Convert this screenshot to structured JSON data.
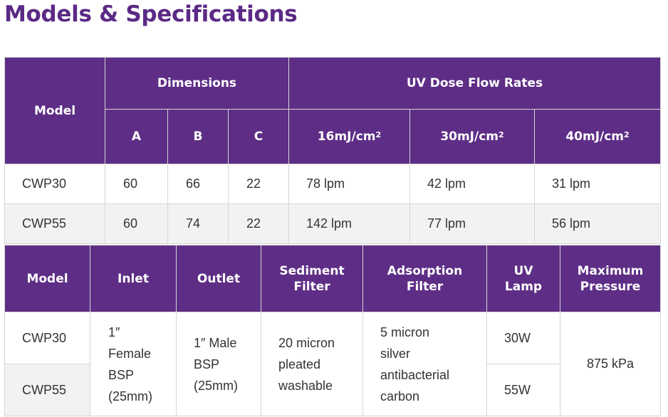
{
  "title": "Models & Specifications",
  "table1": {
    "model_header": "Model",
    "dimensions_header": "Dimensions",
    "flow_header": "UV Dose Flow Rates",
    "dim_cols": [
      "A",
      "B",
      "C"
    ],
    "dose_cols": [
      {
        "base": "16mJ/cm",
        "sup": "2"
      },
      {
        "base": "30mJ/cm",
        "sup": "2"
      },
      {
        "base": "40mJ/cm",
        "sup": "2"
      }
    ],
    "rows": [
      {
        "model": "CWP30",
        "a": "60",
        "b": "66",
        "c": "22",
        "f1": "78 lpm",
        "f2": "42 lpm",
        "f3": "31 lpm"
      },
      {
        "model": "CWP55",
        "a": "60",
        "b": "74",
        "c": "22",
        "f1": "142 lpm",
        "f2": "77 lpm",
        "f3": "56 lpm"
      }
    ]
  },
  "table2": {
    "headers": {
      "model": "Model",
      "inlet": "Inlet",
      "outlet": "Outlet",
      "sediment_1": "Sediment",
      "sediment_2": "Filter",
      "adsorption_1": "Adsorption",
      "adsorption_2": "Filter",
      "uv_1": "UV",
      "uv_2": "Lamp",
      "pressure_1": "Maximum",
      "pressure_2": "Pressure"
    },
    "models": [
      "CWP30",
      "CWP55"
    ],
    "inlet_lines": [
      "1″",
      "Female",
      "BSP",
      "(25mm)"
    ],
    "outlet_lines": [
      "1″ Male",
      "BSP",
      "(25mm)"
    ],
    "sediment_lines": [
      "20 micron",
      "pleated",
      "washable"
    ],
    "adsorption_lines": [
      "5 micron",
      "silver",
      "antibacterial",
      "carbon"
    ],
    "uv_lamps": [
      "30W",
      "55W"
    ],
    "max_pressure": "875 kPa"
  }
}
